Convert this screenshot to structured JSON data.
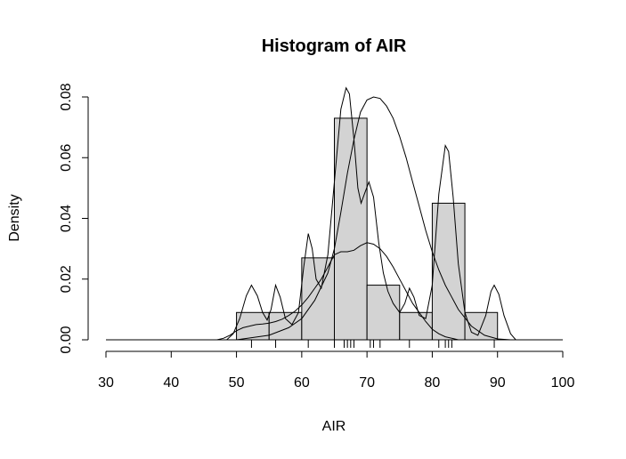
{
  "chart_data": {
    "type": "bar",
    "title": "Histogram of AIR",
    "xlabel": "AIR",
    "ylabel": "Density",
    "xlim": [
      30,
      100
    ],
    "ylim": [
      0,
      0.08
    ],
    "x_ticks": [
      "30",
      "40",
      "50",
      "60",
      "70",
      "80",
      "90",
      "100"
    ],
    "y_ticks": [
      "0.00",
      "0.02",
      "0.04",
      "0.06",
      "0.08"
    ],
    "bins": [
      {
        "start": 50,
        "end": 55,
        "density": 0.009
      },
      {
        "start": 55,
        "end": 60,
        "density": 0.009
      },
      {
        "start": 60,
        "end": 65,
        "density": 0.027
      },
      {
        "start": 65,
        "end": 70,
        "density": 0.073
      },
      {
        "start": 70,
        "end": 75,
        "density": 0.018
      },
      {
        "start": 75,
        "end": 80,
        "density": 0.009
      },
      {
        "start": 80,
        "end": 85,
        "density": 0.045
      },
      {
        "start": 85,
        "end": 90,
        "density": 0.009
      }
    ],
    "rug": [
      52.3,
      56.0,
      61.0,
      65.0,
      66.5,
      67.0,
      67.5,
      68.0,
      70.5,
      71.0,
      72.0,
      76.5,
      81.0,
      82.0,
      82.5,
      83.0,
      89.5
    ],
    "density_curves": [
      {
        "points": [
          [
            47,
            0
          ],
          [
            48,
            0.0005
          ],
          [
            49,
            0.0015
          ],
          [
            50,
            0.003
          ],
          [
            51,
            0.004
          ],
          [
            52,
            0.0045
          ],
          [
            53,
            0.005
          ],
          [
            54,
            0.0052
          ],
          [
            55,
            0.0055
          ],
          [
            56,
            0.006
          ],
          [
            57,
            0.0068
          ],
          [
            58,
            0.008
          ],
          [
            59,
            0.0095
          ],
          [
            60,
            0.0115
          ],
          [
            61,
            0.014
          ],
          [
            62,
            0.017
          ],
          [
            63,
            0.02
          ],
          [
            64,
            0.024
          ],
          [
            65,
            0.028
          ],
          [
            66,
            0.029
          ],
          [
            67,
            0.029
          ],
          [
            68,
            0.0295
          ],
          [
            69,
            0.031
          ],
          [
            70,
            0.032
          ],
          [
            71,
            0.0315
          ],
          [
            72,
            0.03
          ],
          [
            73,
            0.0275
          ],
          [
            74,
            0.024
          ],
          [
            75,
            0.02
          ],
          [
            76,
            0.016
          ],
          [
            77,
            0.012
          ],
          [
            78,
            0.009
          ],
          [
            79,
            0.006
          ],
          [
            80,
            0.0035
          ],
          [
            81,
            0.002
          ],
          [
            82,
            0.001
          ],
          [
            84,
            0
          ],
          [
            100,
            0
          ]
        ]
      },
      {
        "points": [
          [
            50,
            0
          ],
          [
            55,
            0.0015
          ],
          [
            58,
            0.004
          ],
          [
            60,
            0.007
          ],
          [
            62,
            0.013
          ],
          [
            64,
            0.022
          ],
          [
            65,
            0.03
          ],
          [
            66,
            0.042
          ],
          [
            67,
            0.055
          ],
          [
            68,
            0.066
          ],
          [
            69,
            0.075
          ],
          [
            70,
            0.079
          ],
          [
            71,
            0.08
          ],
          [
            72,
            0.0795
          ],
          [
            73,
            0.077
          ],
          [
            74,
            0.073
          ],
          [
            75,
            0.067
          ],
          [
            76,
            0.06
          ],
          [
            77,
            0.052
          ],
          [
            78,
            0.044
          ],
          [
            79,
            0.036
          ],
          [
            80,
            0.029
          ],
          [
            81,
            0.023
          ],
          [
            82,
            0.018
          ],
          [
            83,
            0.014
          ],
          [
            84,
            0.01
          ],
          [
            86,
            0.0045
          ],
          [
            88,
            0.0015
          ],
          [
            90,
            0.0003
          ],
          [
            92,
            0
          ]
        ]
      },
      {
        "points": [
          [
            48.5,
            0
          ],
          [
            49.5,
            0.002
          ],
          [
            50.5,
            0.007
          ],
          [
            51.5,
            0.0145
          ],
          [
            52.3,
            0.018
          ],
          [
            53.2,
            0.0145
          ],
          [
            54,
            0.009
          ],
          [
            54.7,
            0.0065
          ],
          [
            55.3,
            0.01
          ],
          [
            56,
            0.018
          ],
          [
            56.7,
            0.014
          ],
          [
            57.5,
            0.007
          ],
          [
            58.5,
            0.005
          ],
          [
            59.5,
            0.009
          ],
          [
            60.3,
            0.024
          ],
          [
            61,
            0.035
          ],
          [
            61.6,
            0.03
          ],
          [
            62.2,
            0.02
          ],
          [
            63,
            0.017
          ],
          [
            64,
            0.028
          ],
          [
            65,
            0.052
          ],
          [
            66,
            0.076
          ],
          [
            66.8,
            0.083
          ],
          [
            67.3,
            0.081
          ],
          [
            68,
            0.066
          ],
          [
            68.6,
            0.05
          ],
          [
            69.1,
            0.045
          ],
          [
            69.6,
            0.048
          ],
          [
            70.3,
            0.052
          ],
          [
            71,
            0.047
          ],
          [
            71.8,
            0.032
          ],
          [
            72.5,
            0.022
          ],
          [
            73.2,
            0.016
          ],
          [
            74,
            0.012
          ],
          [
            75,
            0.009
          ],
          [
            75.8,
            0.012
          ],
          [
            76.5,
            0.017
          ],
          [
            77.2,
            0.014
          ],
          [
            78,
            0.008
          ],
          [
            79,
            0.007
          ],
          [
            80,
            0.018
          ],
          [
            81,
            0.048
          ],
          [
            82,
            0.064
          ],
          [
            82.5,
            0.062
          ],
          [
            83.2,
            0.047
          ],
          [
            84,
            0.025
          ],
          [
            85,
            0.009
          ],
          [
            86,
            0.0025
          ],
          [
            87,
            0.0015
          ],
          [
            88.2,
            0.008
          ],
          [
            89,
            0.016
          ],
          [
            89.5,
            0.018
          ],
          [
            90.2,
            0.015
          ],
          [
            91,
            0.008
          ],
          [
            92,
            0.002
          ],
          [
            92.8,
            0
          ]
        ]
      }
    ]
  }
}
